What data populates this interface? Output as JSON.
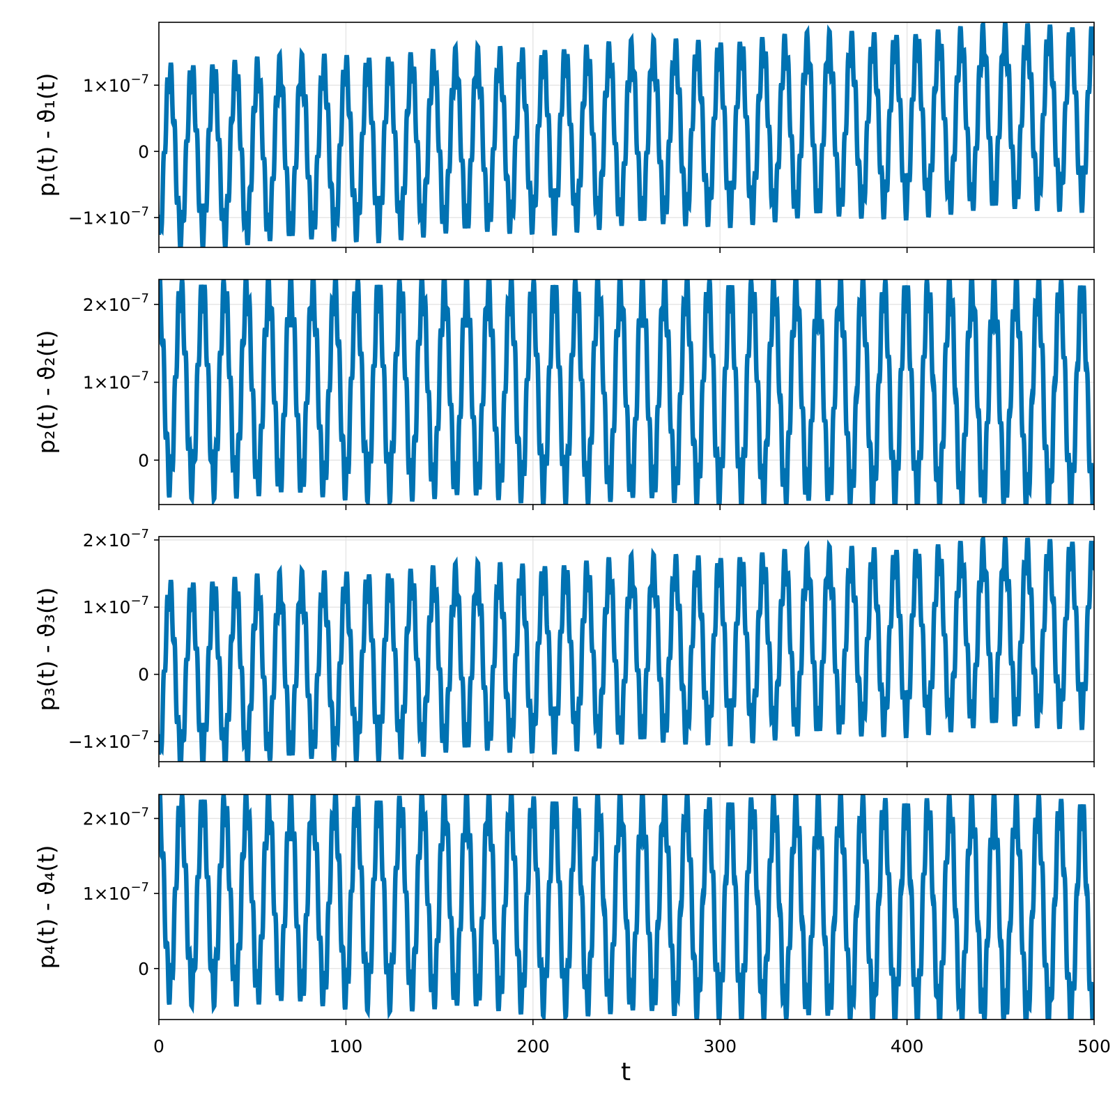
{
  "chart_data": [
    {
      "type": "line",
      "ylabel": "p₁(t) - ϑ₁(t)",
      "xlim": [
        0,
        500
      ],
      "ylim": [
        -1.45e-07,
        1.95e-07
      ],
      "x_ticks": [
        {
          "value": 0,
          "label": "0"
        },
        {
          "value": 100,
          "label": "100"
        },
        {
          "value": 200,
          "label": "200"
        },
        {
          "value": 300,
          "label": "300"
        },
        {
          "value": 400,
          "label": "400"
        },
        {
          "value": 500,
          "label": "500"
        }
      ],
      "y_ticks": [
        {
          "value": -1e-07,
          "mant": "−1×10",
          "exp": "−7"
        },
        {
          "value": 0,
          "mant": "0",
          "exp": ""
        },
        {
          "value": 1e-07,
          "mant": "1×10",
          "exp": "−7"
        }
      ],
      "grid": true,
      "color": "#0072b2",
      "series": [
        {
          "values": [],
          "envelope": {
            "base_start": -6e-09,
            "base_end": 5.5e-08,
            "amp_start": 1.2e-07,
            "amp_end": 1.2e-07,
            "period": 11.75,
            "phase": -1.571,
            "fast_amp": 2.5e-08,
            "fast_period": 2.0
          }
        }
      ]
    },
    {
      "type": "line",
      "ylabel": "p₂(t) - ϑ₂(t)",
      "xlim": [
        0,
        500
      ],
      "ylim": [
        -5.7e-08,
        2.32e-07
      ],
      "x_ticks": [
        {
          "value": 0,
          "label": "0"
        },
        {
          "value": 100,
          "label": "100"
        },
        {
          "value": 200,
          "label": "200"
        },
        {
          "value": 300,
          "label": "300"
        },
        {
          "value": 400,
          "label": "400"
        },
        {
          "value": 500,
          "label": "500"
        }
      ],
      "y_ticks": [
        {
          "value": 0,
          "mant": "0",
          "exp": ""
        },
        {
          "value": 1e-07,
          "mant": "1×10",
          "exp": "−7"
        },
        {
          "value": 2e-07,
          "mant": "2×10",
          "exp": "−7"
        }
      ],
      "grid": true,
      "color": "#0072b2",
      "series": [
        {
          "values": [],
          "envelope": {
            "base_start": 9.5e-08,
            "base_end": 8.5e-08,
            "amp_start": 1.2e-07,
            "amp_end": 1.3e-07,
            "period": 11.75,
            "phase": 1.571,
            "fast_amp": 2.5e-08,
            "fast_period": 2.0
          }
        }
      ]
    },
    {
      "type": "line",
      "ylabel": "p₃(t) - ϑ₃(t)",
      "xlim": [
        0,
        500
      ],
      "ylim": [
        -1.3e-07,
        2.05e-07
      ],
      "x_ticks": [
        {
          "value": 0,
          "label": "0"
        },
        {
          "value": 100,
          "label": "100"
        },
        {
          "value": 200,
          "label": "200"
        },
        {
          "value": 300,
          "label": "300"
        },
        {
          "value": 400,
          "label": "400"
        },
        {
          "value": 500,
          "label": "500"
        }
      ],
      "y_ticks": [
        {
          "value": -1e-07,
          "mant": "−1×10",
          "exp": "−7"
        },
        {
          "value": 0,
          "mant": "0",
          "exp": ""
        },
        {
          "value": 1e-07,
          "mant": "1×10",
          "exp": "−7"
        },
        {
          "value": 2e-07,
          "mant": "2×10",
          "exp": "−7"
        }
      ],
      "grid": true,
      "color": "#0072b2",
      "series": [
        {
          "values": [],
          "envelope": {
            "base_start": 5e-10,
            "base_end": 6.5e-08,
            "amp_start": 1.2e-07,
            "amp_end": 1.2e-07,
            "period": 11.75,
            "phase": -1.571,
            "fast_amp": 2.5e-08,
            "fast_period": 2.0
          }
        }
      ]
    },
    {
      "type": "line",
      "ylabel": "p₄(t) - ϑ₄(t)",
      "xlim": [
        0,
        500
      ],
      "ylim": [
        -6.8e-08,
        2.32e-07
      ],
      "x_ticks": [
        {
          "value": 0,
          "label": "0"
        },
        {
          "value": 100,
          "label": "100"
        },
        {
          "value": 200,
          "label": "200"
        },
        {
          "value": 300,
          "label": "300"
        },
        {
          "value": 400,
          "label": "400"
        },
        {
          "value": 500,
          "label": "500"
        }
      ],
      "y_ticks": [
        {
          "value": 0,
          "mant": "0",
          "exp": ""
        },
        {
          "value": 1e-07,
          "mant": "1×10",
          "exp": "−7"
        },
        {
          "value": 2e-07,
          "mant": "2×10",
          "exp": "−7"
        }
      ],
      "grid": true,
      "color": "#0072b2",
      "series": [
        {
          "values": [],
          "envelope": {
            "base_start": 9.5e-08,
            "base_end": 7.5e-08,
            "amp_start": 1.2e-07,
            "amp_end": 1.35e-07,
            "period": 11.75,
            "phase": 1.571,
            "fast_amp": 2.5e-08,
            "fast_period": 2.0
          }
        }
      ]
    }
  ],
  "xlabel": "t"
}
